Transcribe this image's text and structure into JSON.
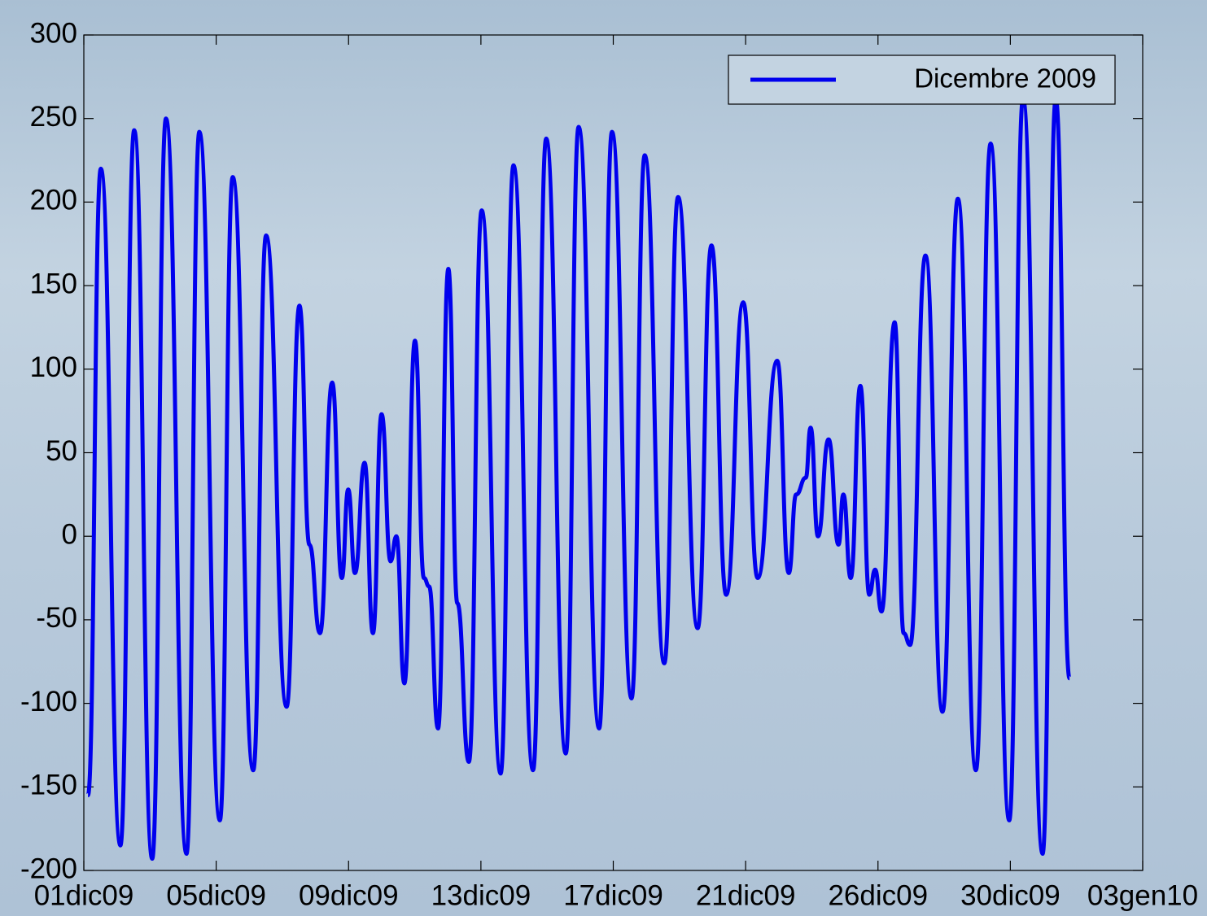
{
  "chart_data": {
    "type": "line",
    "x": [
      0.13,
      0.53,
      1.14,
      1.57,
      2.13,
      2.56,
      3.2,
      3.6,
      4.24,
      4.64,
      5.28,
      5.68,
      6.32,
      6.72,
      7.03,
      7.36,
      7.74,
      8.04,
      8.24,
      8.45,
      8.75,
      9.01,
      9.28,
      9.56,
      9.74,
      9.99,
      10.32,
      10.6,
      10.76,
      11.04,
      11.36,
      11.64,
      12.0,
      12.4,
      12.99,
      13.39,
      14.0,
      14.41,
      15.02,
      15.42,
      16.06,
      16.46,
      17.07,
      17.48,
      18.09,
      18.52,
      19.13,
      19.56,
      20.02,
      20.55,
      21.0,
      21.61,
      21.97,
      22.2,
      22.5,
      22.65,
      22.88,
      23.21,
      23.52,
      23.67,
      23.9,
      24.2,
      24.48,
      24.66,
      24.86,
      25.27,
      25.55,
      25.75,
      26.23,
      26.76,
      27.24,
      27.8,
      28.26,
      28.84,
      29.27,
      29.88,
      30.29,
      30.72
    ],
    "series": [
      {
        "name": "Dicembre 2009",
        "color": "#0000ee",
        "values": [
          -155,
          220,
          -185,
          243,
          -193,
          250,
          -190,
          242,
          -170,
          215,
          -140,
          180,
          -102,
          138,
          -5,
          -58,
          92,
          -25,
          28,
          -22,
          44,
          -58,
          73,
          -15,
          0,
          -88,
          117,
          -25,
          -30,
          -115,
          160,
          -40,
          -135,
          195,
          -142,
          222,
          -140,
          238,
          -130,
          245,
          -115,
          242,
          -97,
          228,
          -76,
          203,
          -55,
          174,
          -35,
          140,
          -25,
          105,
          -22,
          25,
          35,
          65,
          0,
          58,
          -5,
          25,
          -25,
          90,
          -35,
          -20,
          -45,
          128,
          -58,
          -65,
          168,
          -105,
          202,
          -140,
          235,
          -170,
          262,
          -190,
          262,
          -85
        ]
      }
    ],
    "xlim": [
      0,
      33
    ],
    "xticks": [
      {
        "value": 0,
        "label": "01dic09"
      },
      {
        "value": 4.125,
        "label": "05dic09"
      },
      {
        "value": 8.25,
        "label": "09dic09"
      },
      {
        "value": 12.375,
        "label": "13dic09"
      },
      {
        "value": 16.5,
        "label": "17dic09"
      },
      {
        "value": 20.625,
        "label": "21dic09"
      },
      {
        "value": 24.75,
        "label": "26dic09"
      },
      {
        "value": 28.875,
        "label": "30dic09"
      },
      {
        "value": 33,
        "label": "03gen10"
      }
    ],
    "ylim": [
      -200,
      300
    ],
    "yticks": [
      -200,
      -150,
      -100,
      -50,
      0,
      50,
      100,
      150,
      200,
      250,
      300
    ],
    "legend": "upper right"
  }
}
